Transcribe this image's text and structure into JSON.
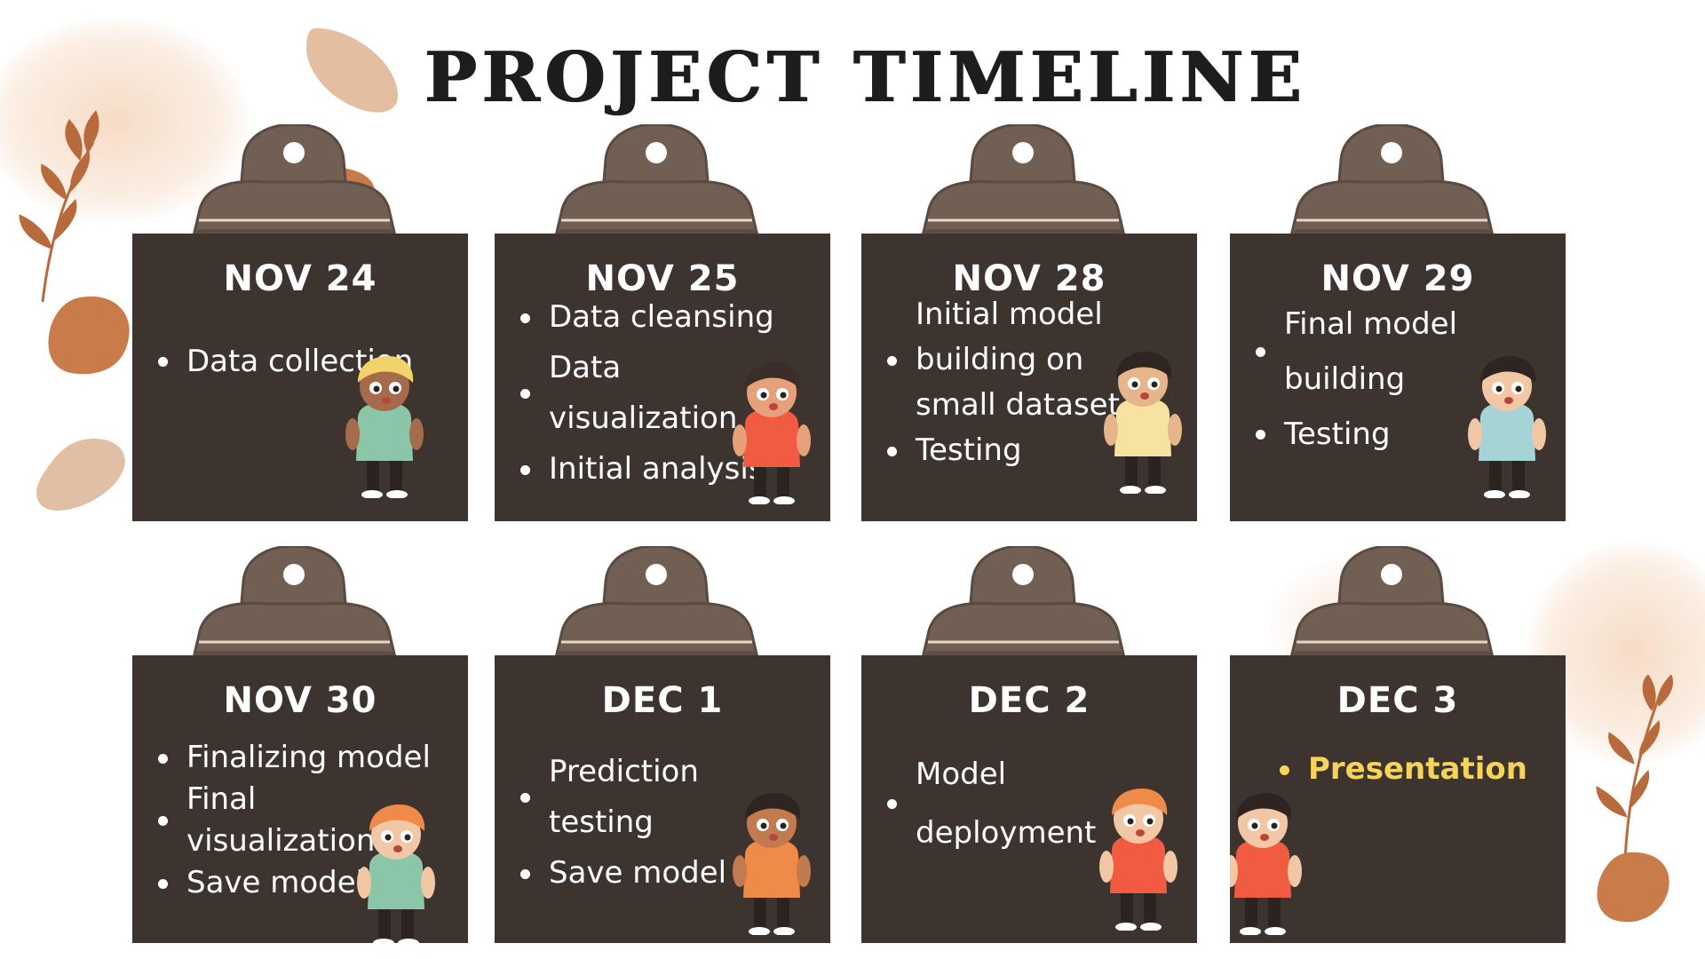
{
  "title": "Project Timeline",
  "colors": {
    "card_background": "#3d3430",
    "clip": "#715f54",
    "clip_stroke": "#5a4a41",
    "text": "#ffffff",
    "highlight": "#f6d45a",
    "accent_leaf": "#b86a3c",
    "stone": "#c97b4a",
    "blush": "#f4cdb0"
  },
  "cards": [
    {
      "date": "NOV 24",
      "items": [
        "Data collection"
      ]
    },
    {
      "date": "NOV 25",
      "items": [
        "Data  cleansing",
        "Data visualization",
        "Initial analysis"
      ]
    },
    {
      "date": "NOV 28",
      "items": [
        "Initial model building on small dataset",
        "Testing"
      ]
    },
    {
      "date": "NOV 29",
      "items": [
        "Final model building",
        "Testing"
      ]
    },
    {
      "date": "NOV 30",
      "items": [
        "Finalizing model",
        "Final visualization",
        "Save model"
      ]
    },
    {
      "date": "DEC 1",
      "items": [
        "Prediction testing",
        "Save model"
      ]
    },
    {
      "date": "DEC 2",
      "items": [
        "Model deployment"
      ]
    },
    {
      "date": "DEC 3",
      "items": [
        "Presentation"
      ],
      "highlight": true
    }
  ],
  "illustrations": {
    "clip_icon": "binder-clip-icon",
    "kid_icon": "cartoon-kid-icon",
    "leaf_icon": "leaf-branch-icon",
    "stone_icon": "stone-shape-icon"
  }
}
